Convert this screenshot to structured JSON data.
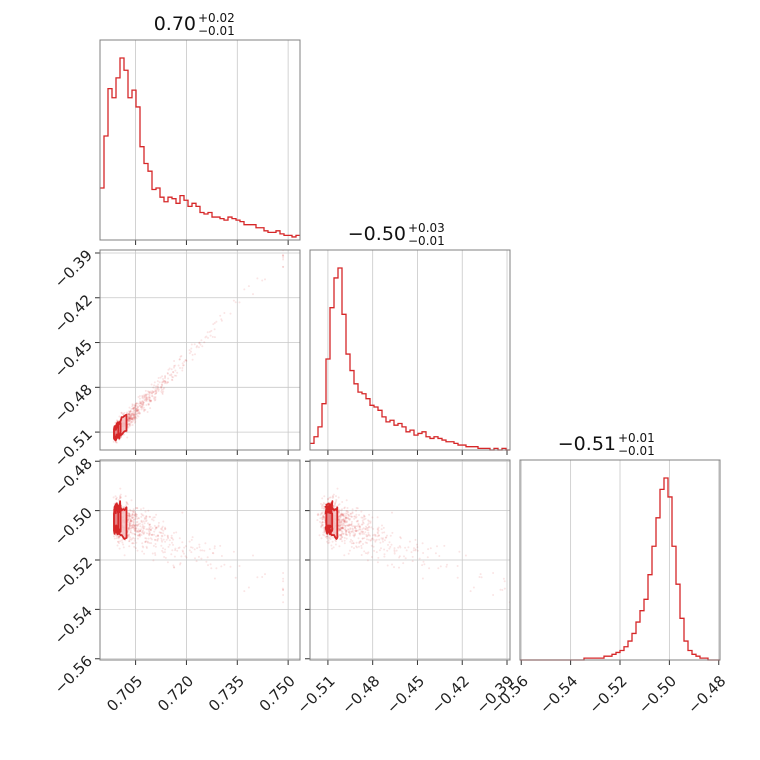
{
  "colors": {
    "accent": "#d62728",
    "frame": "#808080",
    "grid": "#c8c8c8"
  },
  "chart_data": {
    "type": "corner",
    "parameters": [
      {
        "title": {
          "value": "0.70",
          "plus": "+0.02",
          "minus": "−0.01"
        },
        "range": [
          0.6945,
          0.7535
        ],
        "ticks": [
          0.705,
          0.72,
          0.735,
          0.75
        ],
        "tick_labels": [
          "0.705",
          "0.720",
          "0.735",
          "0.750"
        ],
        "histogram": {
          "bin_edges_start": 0.6945,
          "bin_width": 0.00118,
          "counts": [
            34,
            68,
            99,
            93,
            106,
            119,
            111,
            93,
            98,
            87,
            61,
            50,
            45,
            33,
            34,
            28,
            25,
            28,
            27,
            24,
            29,
            26,
            22,
            24,
            22,
            18,
            17,
            18,
            15,
            15,
            14,
            13,
            15,
            14,
            13,
            12,
            10,
            10,
            10,
            8,
            8,
            6,
            5,
            5,
            6,
            4,
            3,
            3,
            2,
            3
          ]
        }
      },
      {
        "title": {
          "value": "−0.50",
          "plus": "+0.03",
          "minus": "−0.01"
        },
        "range": [
          -0.522,
          -0.388
        ],
        "ticks": [
          -0.51,
          -0.48,
          -0.45,
          -0.42,
          -0.39
        ],
        "tick_labels": [
          "−0.51",
          "−0.48",
          "−0.45",
          "−0.42",
          "−0.39"
        ],
        "histogram": {
          "bin_edges_start": -0.522,
          "bin_width": 0.00268,
          "counts": [
            4,
            8,
            14,
            28,
            55,
            86,
            104,
            110,
            82,
            58,
            48,
            40,
            35,
            34,
            31,
            27,
            26,
            24,
            20,
            17,
            18,
            15,
            16,
            14,
            11,
            12,
            9,
            10,
            11,
            8,
            7,
            8,
            7,
            6,
            5,
            5,
            4,
            3,
            3,
            2,
            2,
            2,
            1,
            1,
            1,
            0,
            1,
            0,
            1,
            0
          ]
        }
      },
      {
        "title": {
          "value": "−0.51",
          "plus": "+0.01",
          "minus": "−0.01"
        },
        "range": [
          -0.5605,
          -0.4795
        ],
        "ticks": [
          -0.56,
          -0.54,
          -0.52,
          -0.5,
          -0.48
        ],
        "tick_labels": [
          "−0.56",
          "−0.54",
          "−0.52",
          "−0.50",
          "−0.48"
        ],
        "histogram": {
          "bin_edges_start": -0.5605,
          "bin_width": 0.00162,
          "counts": [
            0,
            0,
            0,
            0,
            0,
            0,
            0,
            0,
            0,
            0,
            0,
            0,
            0,
            0,
            0,
            0,
            1,
            1,
            1,
            1,
            1,
            2,
            2,
            3,
            4,
            5,
            7,
            10,
            14,
            20,
            26,
            32,
            45,
            60,
            75,
            90,
            96,
            86,
            60,
            40,
            22,
            10,
            5,
            3,
            2,
            1,
            1,
            0,
            0,
            0
          ]
        }
      }
    ],
    "pairs": [
      {
        "x_param": 0,
        "y_param": 1,
        "cov": [
          [
            0.00012,
            0.00029
          ],
          [
            0.00029,
            0.00072
          ]
        ]
      },
      {
        "x_param": 0,
        "y_param": 2,
        "cov": [
          [
            0.00012,
            -7e-05
          ],
          [
            -7e-05,
            8e-05
          ]
        ]
      },
      {
        "x_param": 1,
        "y_param": 2,
        "cov": [
          [
            0.00072,
            -0.00016
          ],
          [
            -0.00016,
            8e-05
          ]
        ]
      }
    ],
    "grid": true,
    "contour_levels": 3
  }
}
